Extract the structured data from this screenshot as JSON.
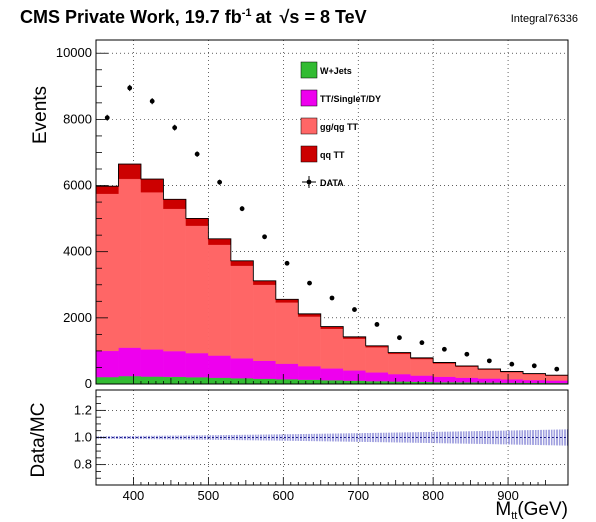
{
  "header": {
    "experiment": "CMS Private Work, 19.7 fb",
    "lumi_sup": "-1",
    "at": "at",
    "sqrt": "√s",
    "energy": " = 8 TeV",
    "integral": "Integral76336"
  },
  "chart_data": [
    {
      "type": "bar",
      "stacked": true,
      "ylabel": "Events",
      "ylim": [
        0,
        10400
      ],
      "xlim": [
        350,
        980
      ],
      "yticks": [
        0,
        2000,
        4000,
        6000,
        8000,
        10000
      ],
      "xticks": [
        400,
        500,
        600,
        700,
        800,
        900
      ],
      "xbins": [
        350,
        380,
        410,
        440,
        470,
        500,
        530,
        560,
        590,
        620,
        650,
        680,
        710,
        740,
        770,
        800,
        830,
        860,
        890,
        920,
        950,
        980
      ],
      "grid": true,
      "legend_position": "top-center",
      "series": [
        {
          "name": "W+Jets",
          "color": "#33bb33",
          "values": [
            210,
            240,
            225,
            215,
            205,
            190,
            175,
            160,
            145,
            130,
            115,
            100,
            85,
            75,
            65,
            55,
            50,
            45,
            40,
            35,
            30
          ]
        },
        {
          "name": "TT/SingleT/DY",
          "color": "#ee00ee",
          "values": [
            790,
            860,
            820,
            780,
            730,
            670,
            600,
            540,
            470,
            410,
            355,
            310,
            265,
            225,
            190,
            165,
            140,
            120,
            100,
            85,
            75
          ]
        },
        {
          "name": "gg/qg TT",
          "color": "#ff6666",
          "values": [
            4750,
            5100,
            4750,
            4300,
            3850,
            3350,
            2800,
            2300,
            1850,
            1500,
            1200,
            960,
            760,
            610,
            500,
            400,
            330,
            270,
            220,
            180,
            150
          ]
        },
        {
          "name": "qq TT",
          "color": "#cc0000",
          "values": [
            230,
            450,
            400,
            290,
            220,
            180,
            150,
            120,
            95,
            80,
            65,
            55,
            45,
            40,
            35,
            30,
            25,
            20,
            18,
            15,
            12
          ]
        }
      ],
      "data_points": {
        "name": "DATA",
        "x": [
          365,
          395,
          425,
          455,
          485,
          515,
          545,
          575,
          605,
          635,
          665,
          695,
          725,
          755,
          785,
          815,
          845,
          875,
          905,
          935,
          965
        ],
        "y": [
          8050,
          8950,
          8550,
          7750,
          6950,
          6100,
          5300,
          4450,
          3650,
          3050,
          2600,
          2250,
          1800,
          1400,
          1250,
          1050,
          900,
          700,
          600,
          550,
          450
        ]
      }
    },
    {
      "type": "scatter",
      "ylabel": "Data/MC",
      "xlabel": "M",
      "xlabel_sub": "tt",
      "xlabel_unit": "(GeV)",
      "ylim": [
        0.65,
        1.35
      ],
      "xlim": [
        350,
        980
      ],
      "yticks": [
        0.8,
        1.0,
        1.2
      ],
      "xticks": [
        400,
        500,
        600,
        700,
        800,
        900
      ],
      "grid": true,
      "ratio_value": 1.0,
      "uncertainty_band": {
        "color": "#0000aa",
        "halfwidth_start": 0.01,
        "halfwidth_end": 0.06
      }
    }
  ]
}
